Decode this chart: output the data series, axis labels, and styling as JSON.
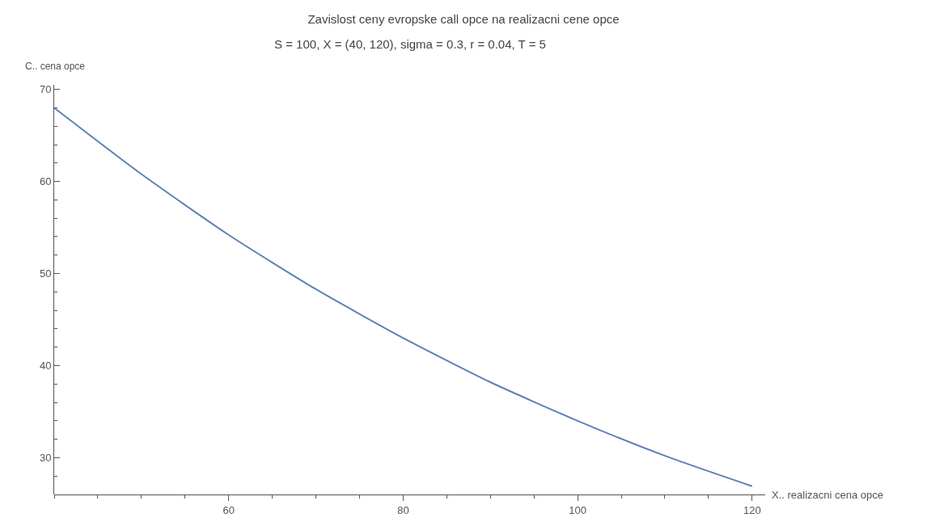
{
  "chart_data": {
    "type": "line",
    "title": "Zavislost ceny evropske call opce na realizacni cene opce",
    "subtitle": "S = 100, X = (40, 120), sigma = 0.3, r = 0.04, T = 5",
    "xlabel": "X.. realizacni cena opce",
    "ylabel": "C.. cena opce",
    "x": [
      40,
      50,
      60,
      70,
      80,
      90,
      100,
      110,
      120
    ],
    "series": [
      {
        "color": "#5e81b5",
        "values": [
          68.0,
          60.8,
          54.2,
          48.3,
          43.0,
          38.2,
          34.0,
          30.2,
          26.9
        ]
      }
    ],
    "xlim": [
      40,
      121.5
    ],
    "ylim": [
      26,
      70.5
    ],
    "xticks": [
      60,
      80,
      100,
      120
    ],
    "yticks": [
      30,
      40,
      50,
      60,
      70
    ],
    "grid": false,
    "legend": false,
    "marker": "none",
    "line_style": "solid"
  }
}
